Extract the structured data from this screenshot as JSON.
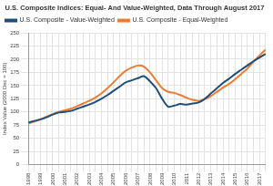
{
  "chart_data": {
    "type": "line",
    "title": "U.S. Composite Indices: Equal- And Value-Weighted, Data Through August 2017",
    "y_label": "Index Value (2000 Dec = 100)",
    "categories": [
      "1998",
      null,
      "1999",
      null,
      "2000",
      null,
      "2001",
      null,
      "2002",
      null,
      "2003",
      null,
      "2004",
      null,
      "2005",
      null,
      "2006",
      null,
      "2007",
      null,
      "2008",
      null,
      "2009",
      null,
      "2010",
      null,
      "2011",
      null,
      "2012",
      null,
      "2013",
      null,
      "2014",
      null,
      "2015",
      null,
      "2016",
      null,
      "2017",
      null
    ],
    "series": [
      {
        "name": "U.S. Composite - Value-Weighted",
        "color": "#1f4e79",
        "values": [
          80,
          83,
          86,
          90,
          95,
          99,
          100,
          102,
          106,
          110,
          114,
          119,
          125,
          132,
          140,
          148,
          156,
          160,
          164,
          168,
          158,
          145,
          125,
          110,
          112,
          115,
          114,
          116,
          118,
          125,
          135,
          145,
          155,
          163,
          172,
          180,
          188,
          196,
          203,
          210
        ]
      },
      {
        "name": "U.S. Composite - Equal-Weighted",
        "color": "#ed7d31",
        "values": [
          78,
          82,
          86,
          91,
          96,
          100,
          103,
          106,
          111,
          116,
          121,
          127,
          135,
          145,
          156,
          168,
          178,
          184,
          188,
          186,
          175,
          160,
          145,
          138,
          136,
          132,
          127,
          123,
          121,
          124,
          130,
          138,
          146,
          153,
          162,
          172,
          182,
          195,
          207,
          218
        ]
      }
    ],
    "ylim": [
      0,
      250
    ],
    "yticks": [
      0,
      25,
      50,
      75,
      100,
      125,
      150,
      175,
      200,
      225,
      250
    ],
    "grid": true,
    "legend": "top-left"
  }
}
